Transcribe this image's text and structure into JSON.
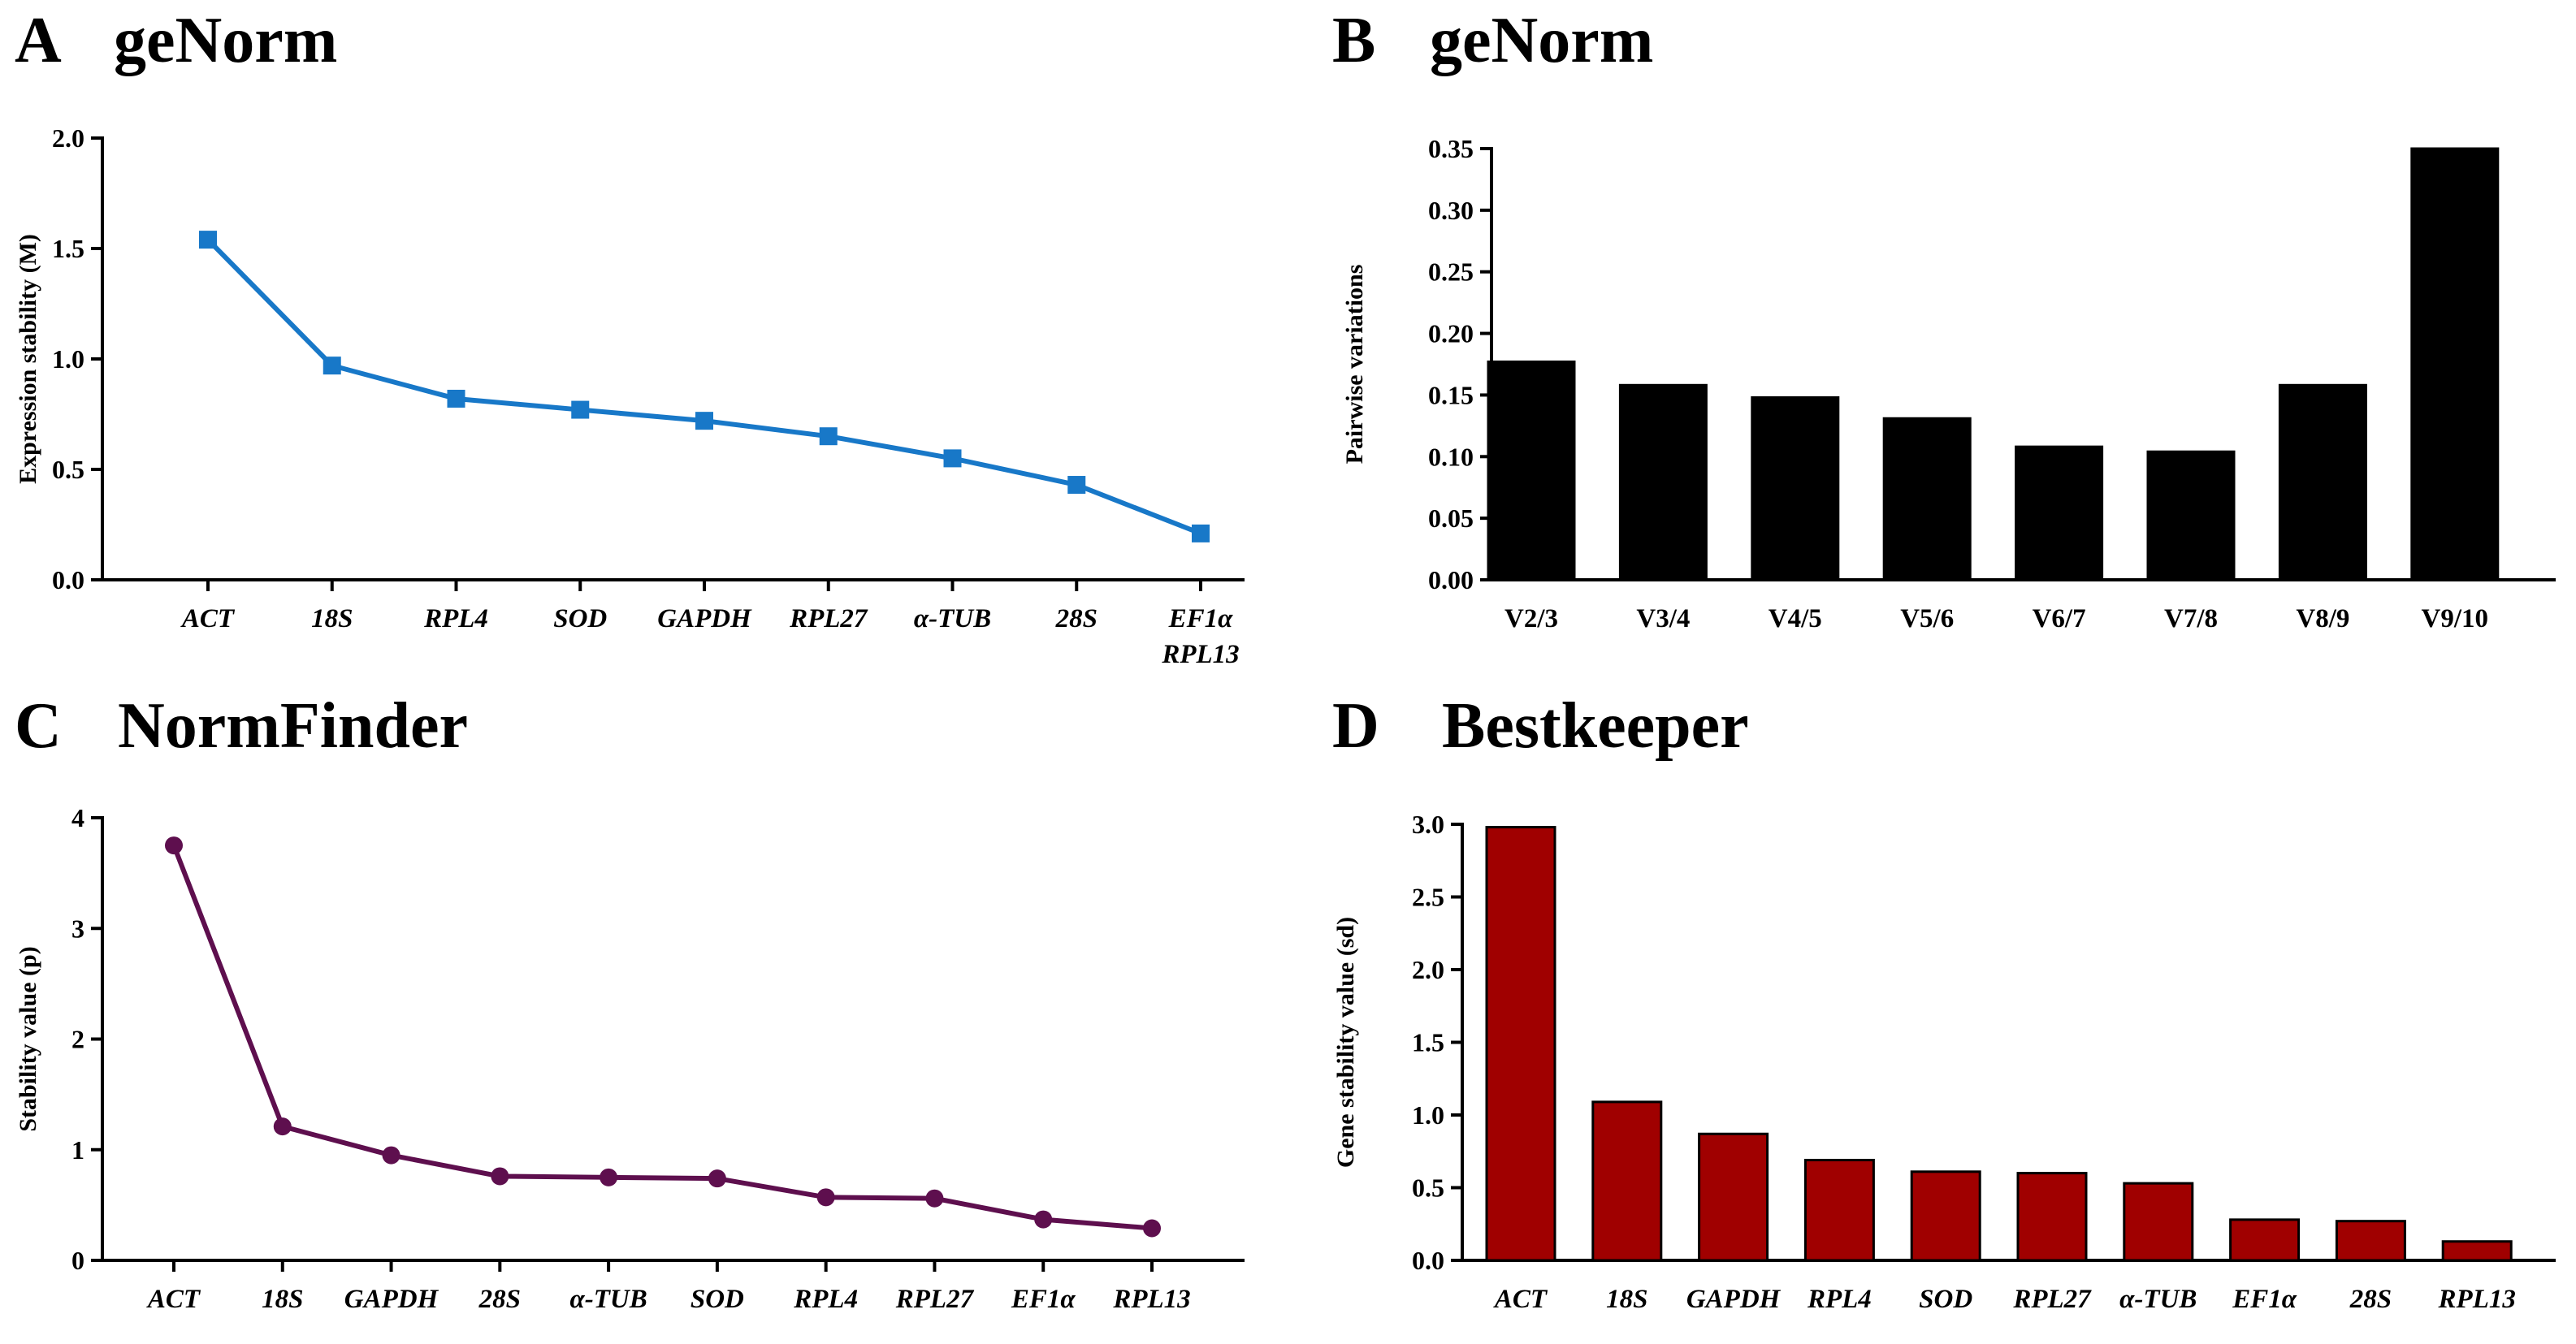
{
  "colors": {
    "line_a": "#1878c8",
    "line_c": "#5e0f4e",
    "bar_b": "#000000",
    "bar_d": "#a00000"
  },
  "chart_data": [
    {
      "id": "A",
      "letter": "A",
      "type": "line",
      "title": "geNorm",
      "ylabel": "Expression stability (M)",
      "categories": [
        "ACT",
        "18S",
        "RPL4",
        "SOD",
        "GAPDH",
        "RPL27",
        "α-TUB",
        "28S",
        "EF1α\nRPL13"
      ],
      "values": [
        1.54,
        0.97,
        0.82,
        0.77,
        0.72,
        0.65,
        0.55,
        0.43,
        0.21
      ],
      "ylim": [
        0,
        2.0
      ],
      "yticks": [
        "0.0",
        "0.5",
        "1.0",
        "1.5",
        "2.0"
      ],
      "marker": "square",
      "italic_categories": true
    },
    {
      "id": "B",
      "letter": "B",
      "type": "bar",
      "title": "geNorm",
      "ylabel": "Pairwise variations",
      "categories": [
        "V2/3",
        "V3/4",
        "V4/5",
        "V5/6",
        "V6/7",
        "V7/8",
        "V8/9",
        "V9/10"
      ],
      "values": [
        0.177,
        0.158,
        0.148,
        0.131,
        0.108,
        0.104,
        0.158,
        0.35
      ],
      "ylim": [
        0,
        0.35
      ],
      "yticks": [
        "0.00",
        "0.05",
        "0.10",
        "0.15",
        "0.20",
        "0.25",
        "0.30",
        "0.35"
      ],
      "italic_categories": false
    },
    {
      "id": "C",
      "letter": "C",
      "type": "line",
      "title": "NormFinder",
      "ylabel": "Stability value (p)",
      "categories": [
        "ACT",
        "18S",
        "GAPDH",
        "28S",
        "α-TUB",
        "SOD",
        "RPL4",
        "RPL27",
        "EF1α",
        "RPL13"
      ],
      "values": [
        3.75,
        1.21,
        0.95,
        0.76,
        0.75,
        0.74,
        0.57,
        0.56,
        0.37,
        0.29
      ],
      "ylim": [
        0,
        4
      ],
      "yticks": [
        "0",
        "1",
        "2",
        "3",
        "4"
      ],
      "marker": "circle",
      "italic_categories": true
    },
    {
      "id": "D",
      "letter": "D",
      "type": "bar",
      "title": "Bestkeeper",
      "ylabel": "Gene stability value (sd)",
      "categories": [
        "ACT",
        "18S",
        "GAPDH",
        "RPL4",
        "SOD",
        "RPL27",
        "α-TUB",
        "EF1α",
        "28S",
        "RPL13"
      ],
      "values": [
        2.98,
        1.09,
        0.87,
        0.69,
        0.61,
        0.6,
        0.53,
        0.28,
        0.27,
        0.13
      ],
      "ylim": [
        0,
        3.0
      ],
      "yticks": [
        "0.0",
        "0.5",
        "1.0",
        "1.5",
        "2.0",
        "2.5",
        "3.0"
      ],
      "italic_categories": true
    }
  ]
}
